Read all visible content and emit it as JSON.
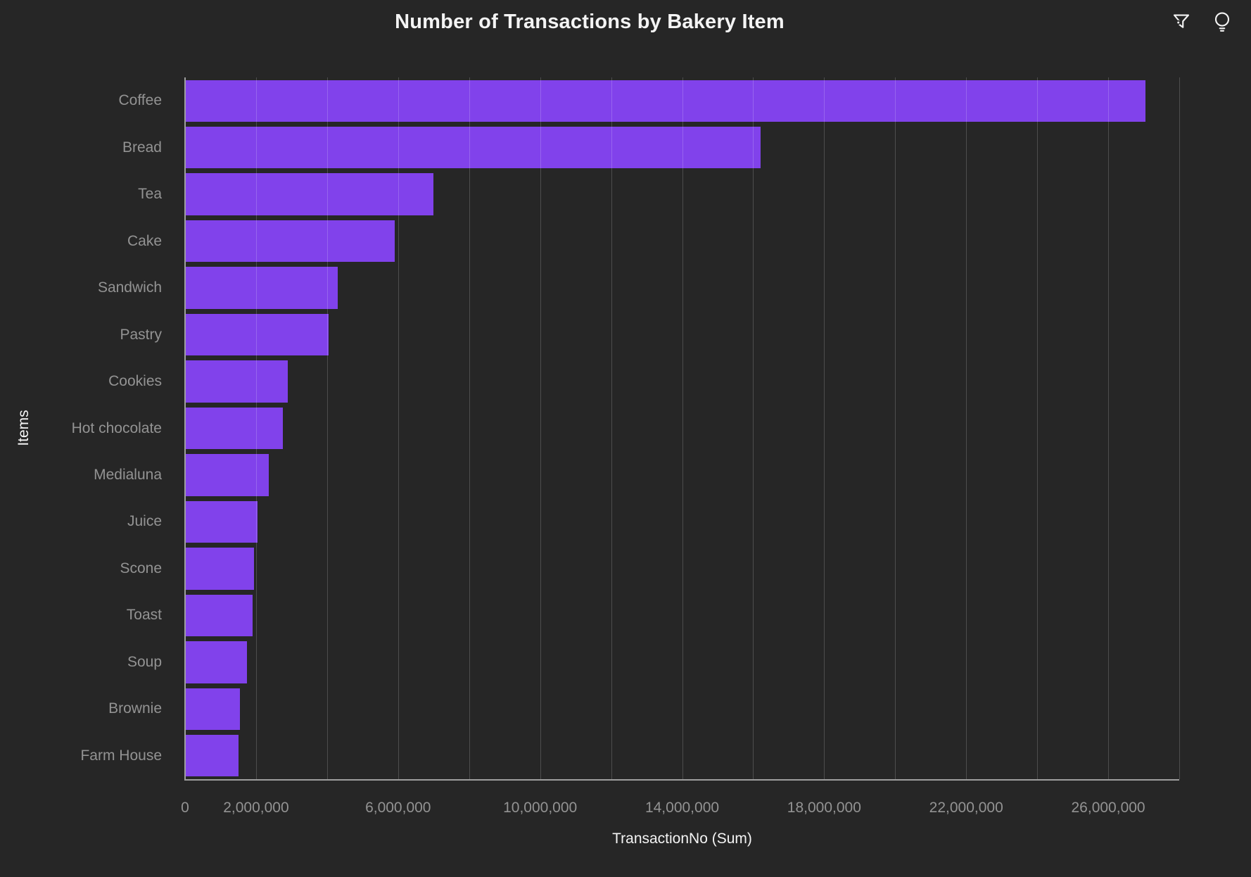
{
  "header": {
    "title": "Number of Transactions by Bakery Item",
    "icons": [
      {
        "name": "filter-icon"
      },
      {
        "name": "insights-lightbulb-icon"
      }
    ]
  },
  "chart_data": {
    "type": "bar",
    "orientation": "horizontal",
    "title": "Number of Transactions by Bakery Item",
    "xlabel": "TransactionNo (Sum)",
    "ylabel": "Items",
    "categories": [
      "Coffee",
      "Bread",
      "Tea",
      "Cake",
      "Sandwich",
      "Pastry",
      "Cookies",
      "Hot chocolate",
      "Medialuna",
      "Juice",
      "Scone",
      "Toast",
      "Soup",
      "Brownie",
      "Farm House"
    ],
    "values": [
      27050000,
      16200000,
      7000000,
      5900000,
      4300000,
      4050000,
      2900000,
      2750000,
      2350000,
      2050000,
      1950000,
      1900000,
      1750000,
      1550000,
      1500000
    ],
    "xlim": [
      0,
      28000000
    ],
    "gridline_interval": 2000000,
    "x_tick_values": [
      0,
      2000000,
      6000000,
      10000000,
      14000000,
      18000000,
      22000000,
      26000000
    ],
    "x_tick_labels": [
      "0",
      "2,000,000",
      "6,000,000",
      "10,000,000",
      "14,000,000",
      "18,000,000",
      "22,000,000",
      "26,000,000"
    ],
    "grid": true,
    "legend": false
  },
  "colors": {
    "background": "#262626",
    "bar": "#8142EB",
    "tick_label": "#939393",
    "axis_title": "#F4F4F4",
    "gridline": "rgba(255,255,255,0.18)",
    "domain_line": "#9E9E9E",
    "title": "#F4F4F4",
    "icon": "#F4F4F4"
  }
}
